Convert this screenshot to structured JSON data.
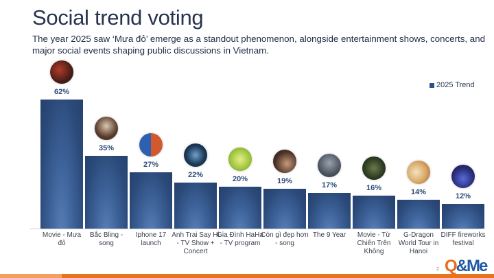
{
  "header": {
    "title": "Social trend voting",
    "subtitle": "The year 2025 saw ‘Mưa đỏ’ emerge as a standout phenomenon, alongside entertainment shows, concerts, and major social events shaping public discussions in Vietnam."
  },
  "legend": {
    "label": "2025 Trend",
    "color": "#2f5286"
  },
  "footer": {
    "page_number": "2",
    "logo_q": "Q",
    "logo_rest": "&Me"
  },
  "colors": {
    "bar": "#2b4a7a",
    "accent": "#e8731f",
    "title": "#26334f"
  },
  "chart_data": {
    "type": "bar",
    "title": "Social trend voting",
    "xlabel": "",
    "ylabel": "",
    "ylim": [
      0,
      65
    ],
    "grid": false,
    "legend_position": "top-right",
    "categories": [
      "Movie - Mưa đỏ",
      "Bắc Bling - song",
      "Iphone 17 launch",
      "Anh Trai Say Hi - TV Show + Concert",
      "Gia Đình HaHa - TV program",
      "Còn gì đẹp hơn - song",
      "The 9 Year",
      "Movie - Từ Chiến Trên Không",
      "G-Dragon World Tour in Hanoi",
      "DIFF fireworks festival"
    ],
    "series": [
      {
        "name": "2025 Trend",
        "values": [
          62,
          35,
          27,
          22,
          20,
          19,
          17,
          16,
          14,
          12
        ]
      }
    ],
    "data_labels": [
      "62%",
      "35%",
      "27%",
      "22%",
      "20%",
      "19%",
      "17%",
      "16%",
      "14%",
      "12%"
    ],
    "thumbnail_icons": [
      "movie-poster-icon",
      "music-video-icon",
      "phone-icon",
      "concert-icon",
      "tv-show-icon",
      "song-cover-icon",
      "nine-year-icon",
      "movie-poster-icon",
      "concert-photo-icon",
      "fireworks-icon"
    ]
  }
}
